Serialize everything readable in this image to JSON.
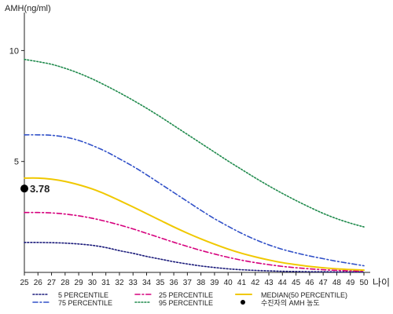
{
  "chart_data": {
    "type": "line",
    "ylabel": "AMH(ng/ml)",
    "xlabel": "나이",
    "xlim": [
      25,
      50
    ],
    "ylim": [
      0,
      11.5
    ],
    "x_ticks": [
      25,
      26,
      27,
      28,
      29,
      30,
      31,
      32,
      33,
      34,
      35,
      36,
      37,
      38,
      39,
      40,
      41,
      42,
      43,
      44,
      45,
      46,
      47,
      48,
      49,
      50
    ],
    "y_ticks": [
      5,
      10
    ],
    "grid": false,
    "legend_position": "bottom",
    "series": [
      {
        "name": "5 PERCENTILE",
        "color": "#1a1a7a",
        "dash": "dotted",
        "x": [
          25,
          26,
          27,
          28,
          29,
          30,
          31,
          32,
          33,
          34,
          35,
          36,
          37,
          38,
          39,
          40,
          41,
          42,
          43,
          44,
          45,
          46,
          47,
          48,
          49,
          50
        ],
        "values": [
          1.35,
          1.35,
          1.34,
          1.32,
          1.28,
          1.22,
          1.12,
          0.98,
          0.86,
          0.72,
          0.6,
          0.48,
          0.38,
          0.29,
          0.22,
          0.16,
          0.12,
          0.09,
          0.07,
          0.05,
          0.04,
          0.03,
          0.03,
          0.02,
          0.02,
          0.02
        ]
      },
      {
        "name": "25 PERCENTILE",
        "color": "#d6007d",
        "dash": "dashdot",
        "x": [
          25,
          26,
          27,
          28,
          29,
          30,
          31,
          32,
          33,
          34,
          35,
          36,
          37,
          38,
          39,
          40,
          41,
          42,
          43,
          44,
          45,
          46,
          47,
          48,
          49,
          50
        ],
        "values": [
          2.7,
          2.7,
          2.68,
          2.63,
          2.55,
          2.44,
          2.3,
          2.14,
          1.96,
          1.76,
          1.56,
          1.36,
          1.17,
          0.99,
          0.83,
          0.68,
          0.55,
          0.44,
          0.35,
          0.27,
          0.21,
          0.16,
          0.12,
          0.09,
          0.07,
          0.05
        ]
      },
      {
        "name": "MEDIAN(50 PERCENTILE)",
        "color": "#f0c800",
        "dash": "solid",
        "x": [
          25,
          26,
          27,
          28,
          29,
          30,
          31,
          32,
          33,
          34,
          35,
          36,
          37,
          38,
          39,
          40,
          41,
          42,
          43,
          44,
          45,
          46,
          47,
          48,
          49,
          50
        ],
        "values": [
          4.25,
          4.25,
          4.2,
          4.1,
          3.95,
          3.76,
          3.52,
          3.24,
          2.95,
          2.65,
          2.35,
          2.05,
          1.77,
          1.51,
          1.27,
          1.05,
          0.86,
          0.7,
          0.56,
          0.44,
          0.35,
          0.27,
          0.21,
          0.16,
          0.13,
          0.1
        ]
      },
      {
        "name": "75 PERCENTILE",
        "color": "#3050c8",
        "dash": "dashdot",
        "x": [
          25,
          26,
          27,
          28,
          29,
          30,
          31,
          32,
          33,
          34,
          35,
          36,
          37,
          38,
          39,
          40,
          41,
          42,
          43,
          44,
          45,
          46,
          47,
          48,
          49,
          50
        ],
        "values": [
          6.2,
          6.2,
          6.18,
          6.1,
          5.95,
          5.72,
          5.45,
          5.12,
          4.78,
          4.4,
          4.0,
          3.6,
          3.2,
          2.8,
          2.42,
          2.08,
          1.76,
          1.48,
          1.24,
          1.04,
          0.88,
          0.74,
          0.62,
          0.5,
          0.4,
          0.3
        ]
      },
      {
        "name": "95 PERCENTILE",
        "color": "#1f8a4c",
        "dash": "dotted",
        "x": [
          25,
          26,
          27,
          28,
          29,
          30,
          31,
          32,
          33,
          34,
          35,
          36,
          37,
          38,
          39,
          40,
          41,
          42,
          43,
          44,
          45,
          46,
          47,
          48,
          49,
          50
        ],
        "values": [
          9.6,
          9.5,
          9.38,
          9.2,
          8.98,
          8.72,
          8.42,
          8.1,
          7.76,
          7.4,
          7.02,
          6.62,
          6.22,
          5.82,
          5.42,
          5.02,
          4.64,
          4.26,
          3.9,
          3.56,
          3.24,
          2.94,
          2.66,
          2.42,
          2.22,
          2.05
        ]
      }
    ],
    "patient": {
      "legend_label": "수진자의 AMH 농도",
      "x": 25,
      "value": 3.78,
      "label": "3.78",
      "color": "#000000"
    }
  }
}
